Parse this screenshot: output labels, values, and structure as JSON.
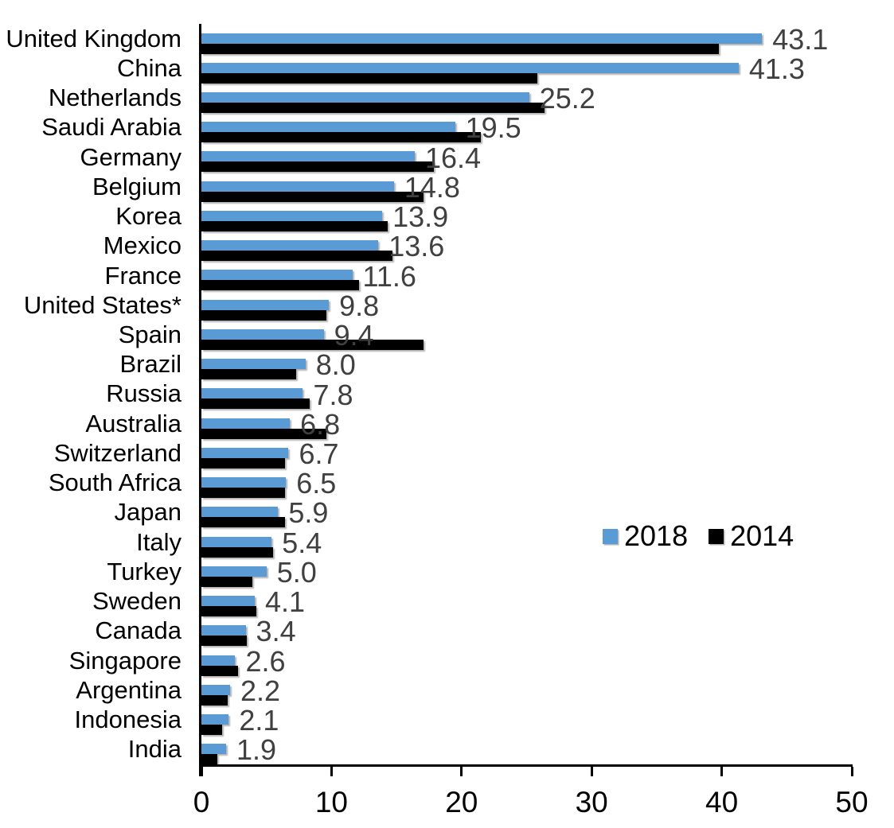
{
  "chart_data": {
    "type": "bar",
    "orientation": "horizontal",
    "title": "",
    "xlabel": "",
    "ylabel": "",
    "xlim": [
      0,
      50
    ],
    "x_ticks": [
      0,
      10,
      20,
      30,
      40,
      50
    ],
    "grid": false,
    "legend_position": "middle-right",
    "categories": [
      "United Kingdom",
      "China",
      "Netherlands",
      "Saudi Arabia",
      "Germany",
      "Belgium",
      "Korea",
      "Mexico",
      "France",
      "United States*",
      "Spain",
      "Brazil",
      "Russia",
      "Australia",
      "Switzerland",
      "South Africa",
      "Japan",
      "Italy",
      "Turkey",
      "Sweden",
      "Canada",
      "Singapore",
      "Argentina",
      "Indonesia",
      "India"
    ],
    "series": [
      {
        "name": "2018",
        "color": "#5B9BD5",
        "data_labels_shown": true,
        "values": [
          43.1,
          41.3,
          25.2,
          19.5,
          16.4,
          14.8,
          13.9,
          13.6,
          11.6,
          9.8,
          9.4,
          8.0,
          7.8,
          6.8,
          6.7,
          6.5,
          5.9,
          5.4,
          5.0,
          4.1,
          3.4,
          2.6,
          2.2,
          2.1,
          1.9
        ]
      },
      {
        "name": "2014",
        "color": "#000000",
        "data_labels_shown": false,
        "values": [
          39.8,
          25.8,
          26.4,
          21.5,
          17.9,
          17.1,
          14.3,
          14.7,
          12.1,
          9.6,
          17.1,
          7.3,
          8.3,
          9.6,
          6.4,
          6.4,
          6.4,
          5.5,
          3.9,
          4.2,
          3.5,
          2.8,
          2.0,
          1.6,
          1.2
        ]
      }
    ],
    "value_label_color": "#404040",
    "axis_color": "#000000"
  }
}
